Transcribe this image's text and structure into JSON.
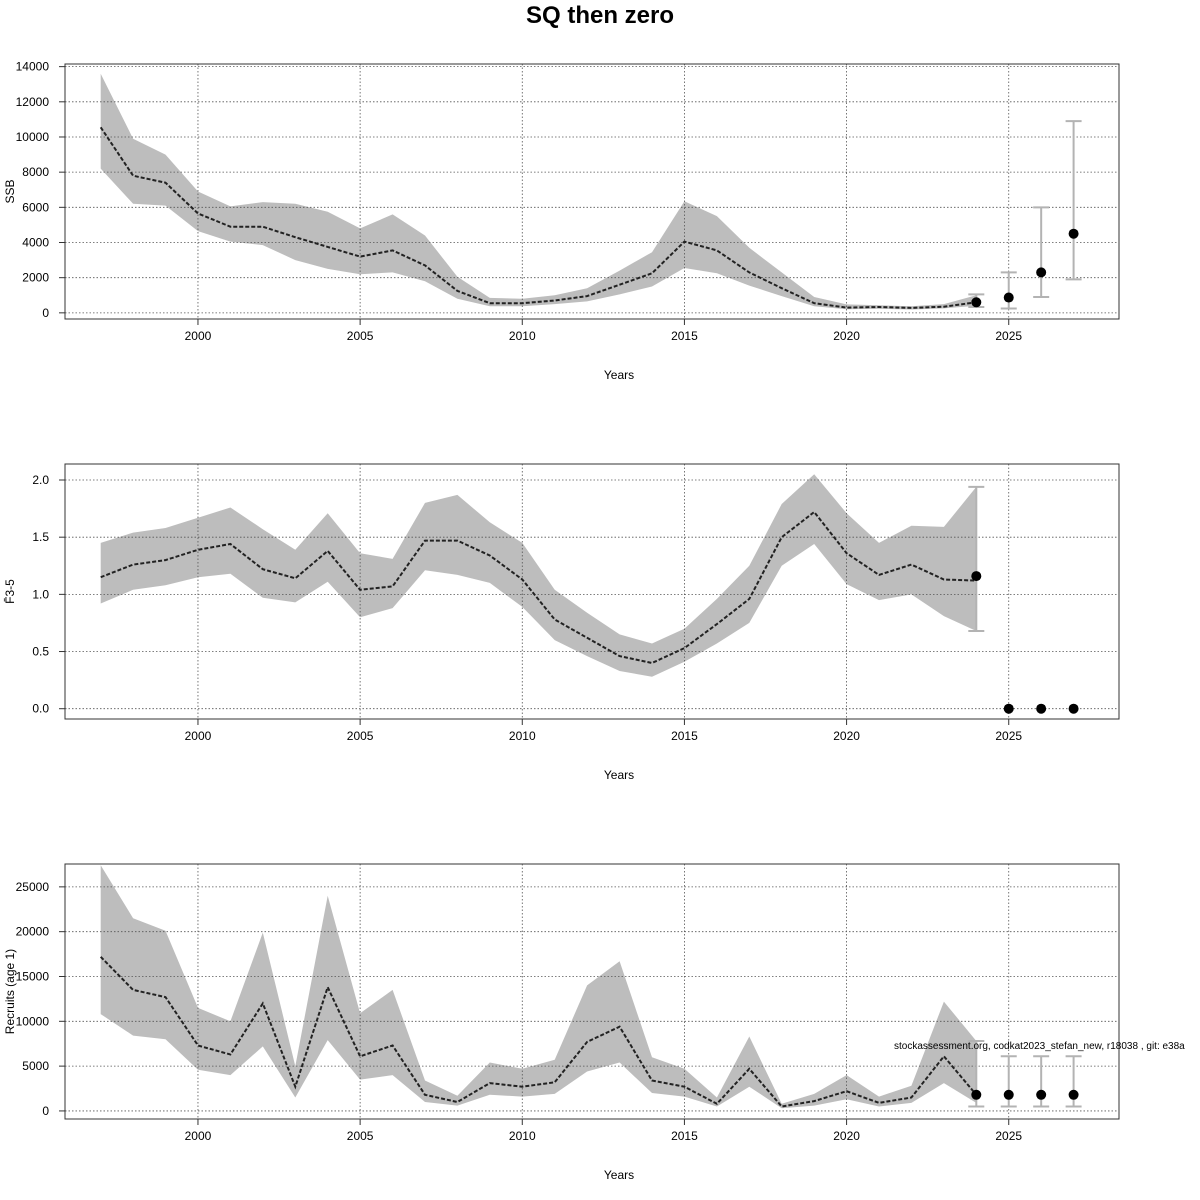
{
  "title": "SQ then zero",
  "footer_note": "stockassessment.org, codkat2023_stefan_new, r18038 , git: e38a",
  "colors": {
    "band": "#bdbdbd",
    "line": "#222222",
    "point": "#000000",
    "errorbar": "#b3b3b3",
    "grid": "#555555"
  },
  "chart_data": [
    {
      "type": "line",
      "name": "ssb-panel",
      "ylabel": "SSB",
      "xlabel": "Years",
      "xlim": [
        1995.9,
        2028.4
      ],
      "ylim": [
        -350,
        14150
      ],
      "xticks": [
        2000,
        2005,
        2010,
        2015,
        2020,
        2025
      ],
      "yticks": [
        0,
        2000,
        4000,
        6000,
        8000,
        10000,
        12000,
        14000
      ],
      "grid": true,
      "years": [
        1997,
        1998,
        1999,
        2000,
        2001,
        2002,
        2003,
        2004,
        2005,
        2006,
        2007,
        2008,
        2009,
        2010,
        2011,
        2012,
        2013,
        2014,
        2015,
        2016,
        2017,
        2018,
        2019,
        2020,
        2021,
        2022,
        2023,
        2024
      ],
      "estimate": [
        10550,
        7800,
        7400,
        5650,
        4900,
        4900,
        4300,
        3750,
        3200,
        3550,
        2700,
        1250,
        550,
        550,
        700,
        950,
        1600,
        2250,
        4050,
        3550,
        2300,
        1400,
        550,
        300,
        330,
        280,
        350,
        600
      ],
      "lower": [
        8200,
        6200,
        6100,
        4650,
        4050,
        3850,
        3000,
        2500,
        2200,
        2300,
        1800,
        800,
        380,
        380,
        500,
        650,
        1050,
        1500,
        2550,
        2250,
        1550,
        950,
        380,
        200,
        230,
        190,
        250,
        400
      ],
      "upper": [
        13600,
        9900,
        9000,
        6900,
        6050,
        6300,
        6200,
        5750,
        4800,
        5600,
        4400,
        2050,
        850,
        800,
        1000,
        1400,
        2400,
        3450,
        6350,
        5500,
        3700,
        2300,
        900,
        480,
        430,
        380,
        500,
        1000
      ],
      "forecast": [
        {
          "year": 2024,
          "value": 600,
          "low": 330,
          "high": 1050
        },
        {
          "year": 2025,
          "value": 870,
          "low": 250,
          "high": 2300
        },
        {
          "year": 2026,
          "value": 2300,
          "low": 900,
          "high": 6000
        },
        {
          "year": 2027,
          "value": 4500,
          "low": 1900,
          "high": 10900
        }
      ]
    },
    {
      "type": "line",
      "name": "fbar-panel",
      "ylabel": "F̄3-5",
      "xlabel": "Years",
      "xlim": [
        1995.9,
        2028.4
      ],
      "ylim": [
        -0.09,
        2.14
      ],
      "xticks": [
        2000,
        2005,
        2010,
        2015,
        2020,
        2025
      ],
      "yticks": [
        0.0,
        0.5,
        1.0,
        1.5,
        2.0
      ],
      "ytick_labels": [
        "0.0",
        "0.5",
        "1.0",
        "1.5",
        "2.0"
      ],
      "grid": true,
      "years": [
        1997,
        1998,
        1999,
        2000,
        2001,
        2002,
        2003,
        2004,
        2005,
        2006,
        2007,
        2008,
        2009,
        2010,
        2011,
        2012,
        2013,
        2014,
        2015,
        2016,
        2017,
        2018,
        2019,
        2020,
        2021,
        2022,
        2023,
        2024
      ],
      "estimate": [
        1.15,
        1.26,
        1.3,
        1.39,
        1.44,
        1.22,
        1.14,
        1.38,
        1.04,
        1.07,
        1.47,
        1.47,
        1.34,
        1.13,
        0.78,
        0.62,
        0.46,
        0.4,
        0.53,
        0.74,
        0.96,
        1.5,
        1.72,
        1.36,
        1.17,
        1.26,
        1.13,
        1.12
      ],
      "lower": [
        0.92,
        1.04,
        1.08,
        1.15,
        1.18,
        0.97,
        0.93,
        1.11,
        0.8,
        0.88,
        1.21,
        1.17,
        1.1,
        0.89,
        0.6,
        0.46,
        0.33,
        0.28,
        0.41,
        0.57,
        0.75,
        1.25,
        1.44,
        1.09,
        0.95,
        1.0,
        0.81,
        0.68
      ],
      "upper": [
        1.45,
        1.54,
        1.58,
        1.67,
        1.76,
        1.57,
        1.39,
        1.71,
        1.36,
        1.31,
        1.8,
        1.87,
        1.63,
        1.45,
        1.04,
        0.84,
        0.65,
        0.57,
        0.7,
        0.96,
        1.25,
        1.79,
        2.05,
        1.71,
        1.45,
        1.6,
        1.59,
        1.94
      ],
      "forecast": [
        {
          "year": 2024,
          "value": 1.16,
          "low": 0.68,
          "high": 1.94
        },
        {
          "year": 2025,
          "value": 0.0
        },
        {
          "year": 2026,
          "value": 0.0
        },
        {
          "year": 2027,
          "value": 0.0
        }
      ]
    },
    {
      "type": "line",
      "name": "recruits-panel",
      "ylabel": "Recruits (age 1)",
      "xlabel": "Years",
      "xlim": [
        1995.9,
        2028.4
      ],
      "ylim": [
        -900,
        27550
      ],
      "xticks": [
        2000,
        2005,
        2010,
        2015,
        2020,
        2025
      ],
      "yticks": [
        0,
        5000,
        10000,
        15000,
        20000,
        25000
      ],
      "grid": true,
      "years": [
        1997,
        1998,
        1999,
        2000,
        2001,
        2002,
        2003,
        2004,
        2005,
        2006,
        2007,
        2008,
        2009,
        2010,
        2011,
        2012,
        2013,
        2014,
        2015,
        2016,
        2017,
        2018,
        2019,
        2020,
        2021,
        2022,
        2023,
        2024
      ],
      "estimate": [
        17200,
        13500,
        12700,
        7300,
        6300,
        12000,
        2700,
        13800,
        6100,
        7300,
        1800,
        1000,
        3100,
        2700,
        3200,
        7700,
        9400,
        3400,
        2700,
        800,
        4700,
        500,
        1100,
        2200,
        900,
        1500,
        6100,
        1800
      ],
      "lower": [
        10800,
        8400,
        8000,
        4600,
        4000,
        7200,
        1500,
        7900,
        3500,
        4000,
        1000,
        600,
        1800,
        1600,
        1900,
        4400,
        5400,
        2000,
        1600,
        500,
        2700,
        300,
        600,
        1300,
        500,
        900,
        3100,
        900
      ],
      "upper": [
        27400,
        21500,
        20100,
        11500,
        10000,
        19900,
        5000,
        24000,
        10900,
        13500,
        3400,
        1700,
        5400,
        4700,
        5700,
        14000,
        16700,
        6000,
        4700,
        1500,
        8300,
        800,
        1900,
        4000,
        1600,
        2800,
        12200,
        7800
      ],
      "forecast": [
        {
          "year": 2024,
          "value": 1800,
          "low": 500,
          "high": 7800
        },
        {
          "year": 2025,
          "value": 1800,
          "low": 500,
          "high": 6100
        },
        {
          "year": 2026,
          "value": 1800,
          "low": 500,
          "high": 6100
        },
        {
          "year": 2027,
          "value": 1800,
          "low": 500,
          "high": 6100
        }
      ]
    }
  ]
}
